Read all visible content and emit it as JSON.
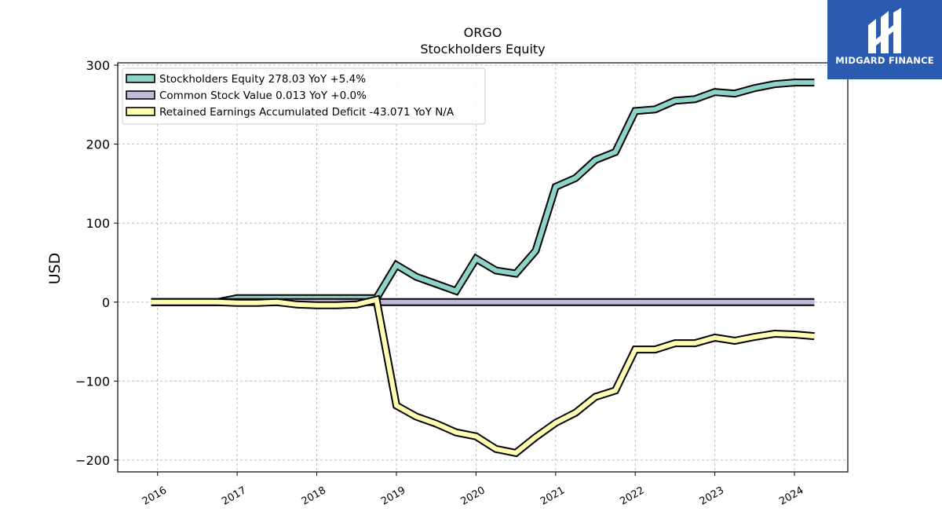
{
  "watermark": {
    "brand": "MIDGARD FINANCE",
    "icon": "midgard-logo-icon",
    "background": "#2a5bb0"
  },
  "chart_data": {
    "type": "line",
    "title": "ORGO",
    "subtitle": "Stockholders  Equity",
    "ylabel": "USD",
    "xlabel": "",
    "ylim": [
      -215,
      303
    ],
    "xlim": [
      2015.5,
      2024.67
    ],
    "yticks": [
      -200,
      -100,
      0,
      100,
      200,
      300
    ],
    "ytick_labels": [
      "−200",
      "−100",
      "0",
      "100",
      "200",
      "300"
    ],
    "xticks": [
      2016,
      2017,
      2018,
      2019,
      2020,
      2021,
      2022,
      2023,
      2024
    ],
    "xtick_labels": [
      "2016",
      "2017",
      "2018",
      "2019",
      "2020",
      "2021",
      "2022",
      "2023",
      "2024"
    ],
    "grid": true,
    "legend_position": "top-left",
    "series": [
      {
        "name": "Stockholders Equity",
        "legend_label": "Stockholders Equity  278.03 YoY +5.4%",
        "color": "#8dd3c7",
        "x": [
          2015.92,
          2016.75,
          2017.0,
          2017.25,
          2017.5,
          2017.75,
          2018.0,
          2018.25,
          2018.5,
          2018.75,
          2019.0,
          2019.25,
          2019.5,
          2019.75,
          2020.0,
          2020.25,
          2020.5,
          2020.75,
          2021.0,
          2021.25,
          2021.5,
          2021.75,
          2022.0,
          2022.25,
          2022.5,
          2022.75,
          2023.0,
          2023.25,
          2023.5,
          2023.75,
          2024.0,
          2024.25
        ],
        "y": [
          0.0,
          0.0,
          5.0,
          5.0,
          5.0,
          5.0,
          5.0,
          5.0,
          5.0,
          5.0,
          47.0,
          32.0,
          23.0,
          14.0,
          55.0,
          40.0,
          36.0,
          65.0,
          146.0,
          157.0,
          180.0,
          190.0,
          242.0,
          244.0,
          255.0,
          257.0,
          266.0,
          264.0,
          271.0,
          276.0,
          278.0,
          278.03
        ]
      },
      {
        "name": "Common Stock Value",
        "legend_label": "Common Stock Value  0.013 YoY +0.0%",
        "color": "#bebada",
        "x": [
          2015.92,
          2024.25
        ],
        "y": [
          0.013,
          0.013
        ]
      },
      {
        "name": "Retained Earnings Accumulated Deficit",
        "legend_label": "Retained Earnings Accumulated Deficit  -43.071 YoY N/A",
        "color": "#ffffb3",
        "x": [
          2015.92,
          2016.75,
          2017.0,
          2017.25,
          2017.5,
          2017.75,
          2018.0,
          2018.25,
          2018.5,
          2018.75,
          2019.0,
          2019.25,
          2019.5,
          2019.75,
          2020.0,
          2020.25,
          2020.5,
          2020.75,
          2021.0,
          2021.25,
          2021.5,
          2021.75,
          2022.0,
          2022.25,
          2022.5,
          2022.75,
          2023.0,
          2023.25,
          2023.5,
          2023.75,
          2024.0,
          2024.25
        ],
        "y": [
          0.0,
          0.0,
          -1.0,
          -1.0,
          0.0,
          -3.0,
          -4.0,
          -4.0,
          -3.0,
          3.0,
          -131.0,
          -145.0,
          -154.0,
          -165.0,
          -170.0,
          -186.0,
          -191.0,
          -171.0,
          -153.0,
          -140.0,
          -120.0,
          -112.0,
          -60.0,
          -60.0,
          -52.0,
          -52.0,
          -45.0,
          -49.0,
          -44.0,
          -40.0,
          -41.0,
          -43.071
        ]
      }
    ]
  }
}
